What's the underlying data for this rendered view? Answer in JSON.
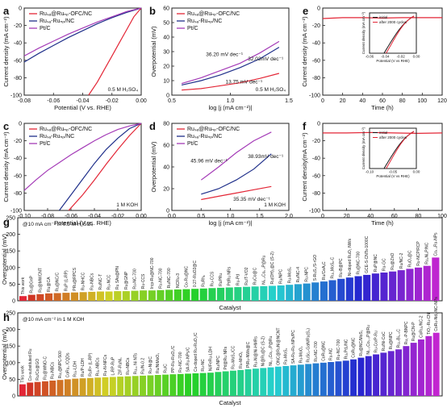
{
  "chart_data": [
    {
      "id": "a",
      "panel_label": "a",
      "type": "line",
      "xlabel": "Potential (V vs. RHE)",
      "ylabel": "Current density (mA cm⁻²)",
      "xlim": [
        -0.08,
        0.0
      ],
      "ylim": [
        -100,
        0
      ],
      "xticks": [
        "-0.08",
        "-0.06",
        "-0.04",
        "-0.02",
        "0.00"
      ],
      "yticks": [
        "-100",
        "-80",
        "-60",
        "-40",
        "-20",
        "0"
      ],
      "note": "0.5 M H₂SO₄",
      "series": [
        {
          "name": "Ru_SA@RuNP-OFC/NC",
          "color": "#e32636",
          "x": [
            -0.036,
            -0.03,
            -0.025,
            -0.02,
            -0.015,
            -0.01,
            -0.005,
            0.0
          ],
          "y": [
            -100,
            -85,
            -70,
            -55,
            -40,
            -25,
            -10,
            0
          ]
        },
        {
          "name": "Ru_SA-RuNP/NC",
          "color": "#1f2f8a",
          "x": [
            -0.08,
            -0.07,
            -0.06,
            -0.05,
            -0.04,
            -0.03,
            -0.02,
            -0.01,
            0.0
          ],
          "y": [
            -62,
            -52,
            -43,
            -34,
            -26,
            -18,
            -11,
            -5,
            0
          ]
        },
        {
          "name": "Pt/C",
          "color": "#a43bb7",
          "x": [
            -0.08,
            -0.07,
            -0.06,
            -0.05,
            -0.04,
            -0.03,
            -0.02,
            -0.01,
            0.0
          ],
          "y": [
            -55,
            -46,
            -38,
            -30,
            -23,
            -16,
            -10,
            -4,
            0
          ]
        }
      ]
    },
    {
      "id": "b",
      "panel_label": "b",
      "type": "line",
      "xlabel": "log |j (mA cm⁻²)|",
      "ylabel": "Overpotential (mV)",
      "xlim": [
        0.4,
        1.6
      ],
      "ylim": [
        0,
        60
      ],
      "xticks": [
        "0.5",
        "1.0",
        "1.5"
      ],
      "yticks": [
        "0",
        "10",
        "20",
        "30",
        "40",
        "50",
        "60"
      ],
      "note": "0.5 M H₂SO₄",
      "tafel_labels": [
        {
          "text": "36.20 mV dec⁻¹",
          "color": "#6a1f8a",
          "x": 0.75,
          "y": 27
        },
        {
          "text": "32.03mV dec⁻¹",
          "color": "#1f2f8a",
          "x": 1.18,
          "y": 24
        },
        {
          "text": "13.75 mV dec⁻¹",
          "color": "#e32636",
          "x": 0.95,
          "y": 8
        }
      ],
      "series": [
        {
          "name": "Ru_SA@RuNP-OFC/NC",
          "color": "#e32636",
          "x": [
            0.5,
            0.7,
            0.9,
            1.1,
            1.3,
            1.5
          ],
          "y": [
            3.5,
            4.5,
            6.5,
            8.5,
            11.5,
            15
          ]
        },
        {
          "name": "Ru_SA-RuNP/NC",
          "color": "#1f2f8a",
          "x": [
            0.5,
            0.7,
            0.9,
            1.1,
            1.3,
            1.5
          ],
          "y": [
            7,
            10,
            14,
            19,
            25,
            33
          ]
        },
        {
          "name": "Pt/C",
          "color": "#a43bb7",
          "x": [
            0.5,
            0.7,
            0.9,
            1.1,
            1.3,
            1.5
          ],
          "y": [
            8,
            12,
            17,
            22,
            29,
            37
          ]
        }
      ]
    },
    {
      "id": "e",
      "panel_label": "e",
      "type": "line",
      "xlabel": "Time (h)",
      "ylabel": "Current density (mA cm⁻²)",
      "xlim": [
        0,
        120
      ],
      "ylim": [
        -100,
        0
      ],
      "xticks": [
        "0",
        "20",
        "40",
        "60",
        "80",
        "100",
        "120"
      ],
      "yticks": [
        "-100",
        "-80",
        "-60",
        "-40",
        "-20",
        "0"
      ],
      "series": [
        {
          "name": "stability",
          "color": "#e32636",
          "x": [
            0,
            20,
            40,
            60,
            80,
            100,
            120
          ],
          "y": [
            -12,
            -11,
            -11,
            -11.5,
            -11,
            -11,
            -11
          ]
        }
      ],
      "inset": {
        "xlabel": "Potential (V vs RHE)",
        "ylabel": "Current density (mA cm⁻²)",
        "xticks": [
          "-0.06",
          "-0.04",
          "-0.02",
          "0.00"
        ],
        "series": [
          {
            "name": "initial",
            "color": "#111111"
          },
          {
            "name": "after 2000 cycles",
            "color": "#e32636"
          }
        ]
      }
    },
    {
      "id": "c",
      "panel_label": "c",
      "type": "line",
      "xlabel": "Potential (V vs. RHE)",
      "ylabel": "Current density (mA cm⁻²)",
      "xlim": [
        -0.1,
        0.0
      ],
      "ylim": [
        -100,
        0
      ],
      "xticks": [
        "-0.10",
        "-0.08",
        "-0.06",
        "-0.04",
        "-0.02",
        "0.00"
      ],
      "yticks": [
        "-100",
        "-80",
        "-60",
        "-40",
        "-20",
        "0"
      ],
      "note": "1 M KOH",
      "series": [
        {
          "name": "Ru_SA@RuNP-OFC/NC",
          "color": "#e32636",
          "x": [
            -0.062,
            -0.05,
            -0.04,
            -0.03,
            -0.02,
            -0.01,
            0.0
          ],
          "y": [
            -100,
            -82,
            -65,
            -47,
            -30,
            -14,
            0
          ]
        },
        {
          "name": "Ru_SA-RuNP/NC",
          "color": "#1f2f8a",
          "x": [
            -0.07,
            -0.06,
            -0.05,
            -0.04,
            -0.03,
            -0.02,
            -0.01,
            0.0
          ],
          "y": [
            -100,
            -82,
            -64,
            -46,
            -30,
            -17,
            -6,
            0
          ]
        },
        {
          "name": "Pt/C",
          "color": "#a43bb7",
          "x": [
            -0.1,
            -0.09,
            -0.08,
            -0.07,
            -0.06,
            -0.05,
            -0.04,
            -0.03,
            -0.02,
            -0.01,
            0.0
          ],
          "y": [
            -77,
            -65,
            -54,
            -45,
            -36,
            -28,
            -20,
            -13,
            -7,
            -3,
            0
          ]
        }
      ]
    },
    {
      "id": "d",
      "panel_label": "d",
      "type": "line",
      "xlabel": "log |j (mA cm⁻²)|",
      "ylabel": "Overpotential (mV)",
      "xlim": [
        0.0,
        2.0
      ],
      "ylim": [
        0,
        80
      ],
      "xticks": [
        "0.0",
        "0.5",
        "1.0",
        "1.5",
        "2.0"
      ],
      "yticks": [
        "0",
        "20",
        "40",
        "60",
        "80"
      ],
      "note": "1 M KOH",
      "tafel_labels": [
        {
          "text": "45.96 mV dec⁻¹",
          "color": "#6a1f8a",
          "x": 0.32,
          "y": 44
        },
        {
          "text": "38.93mV dec⁻¹",
          "color": "#1f2f8a",
          "x": 1.3,
          "y": 48
        },
        {
          "text": "35.35 mV dec⁻¹",
          "color": "#e32636",
          "x": 1.05,
          "y": 9
        }
      ],
      "series": [
        {
          "name": "Ru_SA@RuNP-OFC/NC",
          "color": "#e32636",
          "x": [
            0.5,
            0.8,
            1.1,
            1.4,
            1.7
          ],
          "y": [
            10,
            13,
            16,
            19,
            22
          ]
        },
        {
          "name": "Ru_SA-RuNP/NC",
          "color": "#1f2f8a",
          "x": [
            0.5,
            0.8,
            1.1,
            1.4,
            1.7
          ],
          "y": [
            15,
            20,
            28,
            38,
            52
          ]
        },
        {
          "name": "Pt/C",
          "color": "#a43bb7",
          "x": [
            0.5,
            0.8,
            1.1,
            1.4,
            1.7
          ],
          "y": [
            28,
            40,
            53,
            64,
            72
          ]
        }
      ]
    },
    {
      "id": "f",
      "panel_label": "f",
      "type": "line",
      "xlabel": "Time (h)",
      "ylabel": "Current density(mA cm⁻²)",
      "xlim": [
        0,
        100
      ],
      "ylim": [
        -100,
        0
      ],
      "xticks": [
        "0",
        "20",
        "40",
        "60",
        "80",
        "100"
      ],
      "yticks": [
        "-100",
        "-80",
        "-60",
        "-40",
        "-20",
        "0"
      ],
      "series": [
        {
          "name": "stability",
          "color": "#e32636",
          "x": [
            0,
            20,
            40,
            60,
            80,
            100
          ],
          "y": [
            -11,
            -11,
            -10.5,
            -11,
            -11.5,
            -11
          ]
        }
      ],
      "inset": {
        "xlabel": "Potential (V vs RHE)",
        "ylabel": "Current density (mA cm⁻²)",
        "xticks": [
          "-0.10",
          "-0.05",
          "0.00"
        ],
        "series": [
          {
            "name": "initial",
            "color": "#111111"
          },
          {
            "name": "after 2000 cycles",
            "color": "#e32636"
          }
        ]
      }
    },
    {
      "id": "g",
      "panel_label": "g",
      "type": "bar",
      "title": "@10 mA cm⁻² in 0.5 M H₂SO₄",
      "xlabel": "Catalyst",
      "ylabel": "Overpotential (mV)",
      "ylim": [
        0,
        250
      ],
      "yticks": [
        "0",
        "50",
        "100",
        "150",
        "200",
        "250"
      ],
      "categories": [
        "This work",
        "Ru@GnP",
        "Ru@MWCNT",
        "Ru@CA",
        "Ru@NC/C",
        "RuP (L-RP)",
        "PRu@RPCS",
        "Ru-NHCC",
        "Ru-NBCs",
        "Ru/NC-T",
        "Ru-NCC",
        "Ru SAs@PN",
        "Ru@GNP",
        "Ru-NC-700",
        "Ru-CCS",
        "Ircp-Ru@NC-700",
        "Ru-NC-700",
        "Ru/NC-700",
        "NCRu-3",
        "Co-Ru@NC",
        "0.27-RuO2@C",
        "RuRhₓ",
        "Ru-CCS",
        "RuPRu",
        "PdRu NRs",
        "Ru-Pd",
        "Ru/T-VO2",
        "RuCo@C",
        "Ni₁.₃Co₀.₇P@Ru",
        "Ru(OH)₂@C (S-2)",
        "Ru/NPC",
        "Ru-MoS₂",
        "Ru/NC-4",
        "Ru-NPC",
        "S-RuS₂/S-rGO",
        "Ru/CeAₓC",
        "Ru₁,MoSₓ-C",
        "Ru-B@PC",
        "Ni-doped RuO₂ NWs",
        "Ru@NC-700",
        "GCE-S-CNTs-1000C",
        "RuP@NC",
        "Ru-GC",
        "Ru@ZnO",
        "Ru/NC-2",
        "RuO₂@C",
        "Ru-NCP/RCP",
        "Ru₂Ni₂P/NC",
        "Co₁.₃Ru-NPs"
      ],
      "values": [
        14,
        18,
        20,
        22,
        23,
        24,
        25,
        26,
        27,
        28,
        28,
        29,
        29,
        30,
        31,
        31,
        32,
        33,
        34,
        35,
        36,
        37,
        38,
        39,
        40,
        41,
        42,
        43,
        44,
        45,
        46,
        48,
        50,
        52,
        55,
        58,
        62,
        66,
        70,
        74,
        78,
        82,
        85,
        88,
        92,
        96,
        100,
        105,
        130
      ]
    },
    {
      "id": "h",
      "panel_label": "h",
      "type": "bar",
      "title": "@10 mA cm⁻² in 1 M KOH",
      "xlabel": "Catalyst",
      "ylabel": "Overpotential (mV)",
      "ylim": [
        0,
        250
      ],
      "yticks": [
        "0",
        "50",
        "100",
        "150",
        "200",
        "250"
      ],
      "categories": [
        "This work",
        "Co-substituted Ru",
        "Ru/Co@GO",
        "Ru@WNO-C",
        "Ru-NBCs",
        "Ru₂@NPC-500",
        "CoRu₁ /CQDs",
        "Ru₁-LDH",
        "Ru/P-LDH",
        "RuR+ (L-RP)",
        "Ru₁-NBCs",
        "Ru-N-NFCs",
        "L-RP-RuP",
        "ZIF-RuNi₁",
        "Ru-NBCs",
        "Ru₁₀ Ni NTs",
        "Ru/N-0.2",
        "Ru-Ni@C",
        "Ru/NiMoO₄",
        "Ru/C",
        "PP-Ru-RuO₂/C",
        "Ru-NC-700",
        "SA-Ru-NPs/C",
        "Co-doped Ru-RuO₂/C",
        "Ru-NC",
        "Ni/FeRu-LDH",
        "Ru/NPC",
        "Pd@Ru NRs",
        "Ru-MoS₂/CC",
        "Ru-MnOₓ",
        "PtRu-NWs@C",
        "Ru-Ni@Ni-HMRs",
        "Ni@Ru@C (S-2)",
        "Ni₀.₅Co₀.₅P@Ru",
        "ONC@RuNi@NCNT",
        "Ru-MoS₂",
        "SA-Ru-Ru NPs/PC",
        "Ru-MoO₂",
        "RuSc₂-GaN/Ru(S₂)",
        "Ru-NC-700",
        "CoRu@NC",
        "Ru-NC",
        "Ru-NC-700",
        "Ru₁Pd₂/NC",
        "CoRu@NC",
        "Ru@NC/MoS₂",
        "Ni₁.₅Co₀.₅P@Ru",
        "Ru-Co/P-Ru",
        "Ru/Ni-CoC",
        "Ru@NPC",
        "Ru₁-Bi₀.₅C",
        "Ru₁-P-BNPC",
        "Ru@CN-P",
        "CoRu₁/NC-2",
        "TiO₂-Ru-CN",
        "CoRu-Nd₁-NC-NPs"
      ],
      "values": [
        35,
        40,
        42,
        44,
        46,
        48,
        50,
        52,
        53,
        54,
        55,
        56,
        57,
        58,
        59,
        60,
        61,
        62,
        63,
        64,
        65,
        66,
        67,
        68,
        69,
        70,
        72,
        74,
        76,
        78,
        80,
        82,
        84,
        86,
        88,
        90,
        92,
        94,
        96,
        98,
        100,
        102,
        104,
        106,
        110,
        115,
        120,
        125,
        130,
        135,
        140,
        150,
        160,
        170,
        180,
        190
      ]
    }
  ]
}
